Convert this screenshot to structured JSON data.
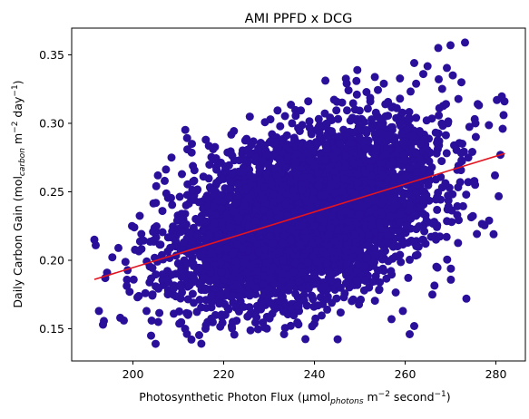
{
  "chart_data": {
    "type": "scatter",
    "title": "AMI PPFD x DCG",
    "xlabel": {
      "main": "Photosynthetic Photon Flux (μmol",
      "sub": "photons",
      "mid": " m",
      "sup1": "−2",
      "mid2": " second",
      "sup2": "−1",
      "end": ")"
    },
    "ylabel": {
      "main": "Daily Carbon Gain (mol",
      "sub": "carbon",
      "mid": " m",
      "sup1": "−2",
      "mid2": " day",
      "sup2": "−1",
      "end": ")"
    },
    "xlim": [
      186.5,
      286.5
    ],
    "ylim": [
      0.1265,
      0.3695
    ],
    "xticks": [
      200,
      220,
      240,
      260,
      280
    ],
    "xtick_labels": [
      "200",
      "220",
      "240",
      "260",
      "280"
    ],
    "yticks": [
      0.15,
      0.2,
      0.25,
      0.3,
      0.35
    ],
    "ytick_labels": [
      "0.15",
      "0.20",
      "0.25",
      "0.30",
      "0.35"
    ],
    "grid": false,
    "point_color": "#2a0f9a",
    "trend_color": "#e3141f",
    "cloud": {
      "x_mean": 238,
      "x_sd": 13.5,
      "y_mean": 0.232,
      "y_sd": 0.032,
      "correlation": 0.42,
      "approx_points": 5000
    },
    "outliers": [
      [
        191.5,
        0.215
      ],
      [
        191.8,
        0.211
      ],
      [
        192.5,
        0.163
      ],
      [
        193.4,
        0.153
      ],
      [
        193.9,
        0.187
      ],
      [
        194.3,
        0.191
      ],
      [
        196.8,
        0.209
      ],
      [
        197.2,
        0.158
      ],
      [
        198.0,
        0.156
      ],
      [
        199.8,
        0.225
      ],
      [
        200.3,
        0.224
      ],
      [
        201.0,
        0.173
      ],
      [
        203.0,
        0.163
      ],
      [
        204.0,
        0.145
      ],
      [
        205.0,
        0.139
      ],
      [
        205.5,
        0.262
      ],
      [
        208.5,
        0.275
      ],
      [
        212.0,
        0.281
      ],
      [
        213.0,
        0.285
      ],
      [
        255.3,
        0.329
      ],
      [
        262.0,
        0.344
      ],
      [
        264.0,
        0.336
      ],
      [
        267.3,
        0.355
      ],
      [
        270.0,
        0.357
      ],
      [
        273.2,
        0.359
      ],
      [
        270.5,
        0.335
      ],
      [
        272.4,
        0.33
      ],
      [
        273.5,
        0.172
      ],
      [
        275.5,
        0.3
      ],
      [
        276.0,
        0.314
      ],
      [
        278.5,
        0.229
      ],
      [
        279.5,
        0.219
      ],
      [
        279.8,
        0.262
      ],
      [
        281.0,
        0.277
      ],
      [
        281.5,
        0.296
      ],
      [
        281.9,
        0.316
      ],
      [
        281.7,
        0.306
      ],
      [
        257.0,
        0.157
      ],
      [
        259.5,
        0.163
      ],
      [
        262.0,
        0.152
      ],
      [
        261.0,
        0.146
      ],
      [
        229.0,
        0.151
      ],
      [
        222.0,
        0.155
      ],
      [
        216.0,
        0.15
      ],
      [
        209.0,
        0.161
      ],
      [
        211.5,
        0.15
      ],
      [
        206.5,
        0.236
      ],
      [
        207.0,
        0.258
      ],
      [
        246.5,
        0.173
      ],
      [
        266.0,
        0.175
      ]
    ],
    "trend": {
      "x": [
        191.5,
        282.0
      ],
      "y": [
        0.186,
        0.278
      ]
    }
  }
}
